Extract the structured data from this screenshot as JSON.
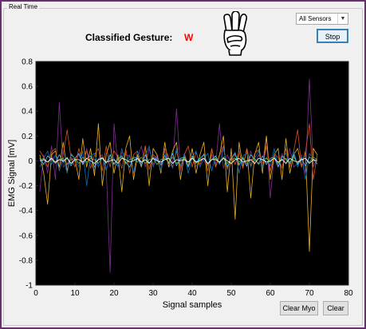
{
  "panel": {
    "title": "Real Time"
  },
  "gesture": {
    "label": "Classified Gesture:",
    "value": "W"
  },
  "sensor_select": {
    "selected": "All Sensors"
  },
  "buttons": {
    "stop": "Stop",
    "clear_myo": "Clear Myo",
    "clear": "Clear"
  },
  "icons": {
    "hand": "hand-gesture-w-icon",
    "dropdown": "chevron-down-icon"
  },
  "chart_data": {
    "type": "line",
    "xlabel": "Signal samples",
    "ylabel": "EMG Signal [mV]",
    "xlim": [
      0,
      80
    ],
    "ylim": [
      -1,
      0.8
    ],
    "xticks": [
      "0",
      "10",
      "20",
      "30",
      "40",
      "50",
      "60",
      "70",
      "80"
    ],
    "yticks": [
      "-1",
      "-0.8",
      "-0.6",
      "-0.4",
      "-0.2",
      "0",
      "0.2",
      "0.4",
      "0.6",
      "0.8"
    ],
    "background": "#000000",
    "grid": false,
    "x": [
      1,
      2,
      3,
      4,
      5,
      6,
      7,
      8,
      9,
      10,
      11,
      12,
      13,
      14,
      15,
      16,
      17,
      18,
      19,
      20,
      21,
      22,
      23,
      24,
      25,
      26,
      27,
      28,
      29,
      30,
      31,
      32,
      33,
      34,
      35,
      36,
      37,
      38,
      39,
      40,
      41,
      42,
      43,
      44,
      45,
      46,
      47,
      48,
      49,
      50,
      51,
      52,
      53,
      54,
      55,
      56,
      57,
      58,
      59,
      60,
      61,
      62,
      63,
      64,
      65,
      66,
      67,
      68,
      69,
      70,
      71,
      72
    ],
    "series": [
      {
        "color": "#7e2f8e",
        "values": [
          -0.25,
          0.05,
          -0.1,
          0.12,
          -0.15,
          0.47,
          -0.05,
          -0.02,
          0.03,
          -0.01,
          0.05,
          -0.03,
          0.1,
          -0.02,
          -0.08,
          0.02,
          0.05,
          -0.05,
          -0.9,
          0.3,
          -0.05,
          0.07,
          0.05,
          0.04,
          -0.1,
          0.02,
          0.12,
          -0.05,
          0.1,
          -0.03,
          0.05,
          -0.04,
          0.08,
          -0.05,
          -0.02,
          0.42,
          -0.08,
          0.06,
          -0.04,
          0.1,
          -0.05,
          0.02,
          0.0,
          -0.04,
          0.05,
          -0.03,
          0.3,
          -0.06,
          0.05,
          -0.03,
          0.05,
          -0.04,
          0.02,
          -0.05,
          0.08,
          -0.03,
          0.05,
          -0.02,
          0.2,
          -0.3,
          0.05,
          -0.04,
          0.06,
          -0.03,
          0.1,
          -0.05,
          -0.02,
          0.05,
          -0.1,
          0.66,
          -0.05,
          0.02
        ]
      },
      {
        "color": "#edb120",
        "values": [
          0.05,
          -0.1,
          -0.35,
          0.05,
          0.08,
          -0.05,
          0.15,
          -0.08,
          0.05,
          0.02,
          -0.15,
          0.18,
          -0.05,
          0.1,
          -0.12,
          0.3,
          -0.2,
          0.05,
          0.15,
          -0.1,
          0.05,
          -0.25,
          0.1,
          0.2,
          -0.15,
          0.05,
          -0.05,
          0.12,
          -0.2,
          0.1,
          0.05,
          -0.1,
          0.15,
          -0.05,
          0.08,
          0.15,
          -0.15,
          0.05,
          -0.05,
          0.1,
          -0.1,
          0.05,
          0.15,
          -0.2,
          0.1,
          -0.05,
          0.05,
          0.2,
          -0.25,
          0.1,
          -0.47,
          0.15,
          -0.05,
          0.1,
          -0.3,
          0.05,
          0.15,
          -0.1,
          0.2,
          -0.15,
          0.05,
          0.1,
          -0.15,
          0.18,
          -0.1,
          0.05,
          0.1,
          -0.05,
          0.08,
          -0.73,
          0.1,
          0.05
        ]
      },
      {
        "color": "#d95319",
        "values": [
          0.08,
          0.03,
          -0.05,
          0.07,
          0.1,
          -0.08,
          0.05,
          0.25,
          0.02,
          -0.05,
          0.1,
          -0.02,
          0.08,
          -0.06,
          0.05,
          0.1,
          -0.08,
          0.12,
          -0.05,
          0.08,
          0.03,
          -0.06,
          0.1,
          -0.1,
          0.05,
          0.08,
          -0.04,
          0.12,
          -0.07,
          0.05,
          0.02,
          -0.08,
          0.1,
          0.03,
          -0.05,
          0.08,
          -0.06,
          0.05,
          0.12,
          -0.05,
          0.07,
          -0.03,
          0.06,
          -0.08,
          0.1,
          -0.05,
          0.04,
          0.12,
          -0.07,
          0.05,
          -0.03,
          0.08,
          -0.06,
          0.1,
          -0.04,
          0.06,
          0.09,
          -0.05,
          0.12,
          -0.08,
          0.05,
          0.03,
          -0.06,
          0.1,
          -0.05,
          0.08,
          0.25,
          -0.05,
          0.07,
          0.3,
          -0.15,
          0.05
        ]
      },
      {
        "color": "#0072bd",
        "values": [
          -0.05,
          0.02,
          0.08,
          -0.03,
          0.05,
          -0.08,
          0.03,
          -0.1,
          0.06,
          0.02,
          -0.05,
          0.08,
          -0.2,
          0.04,
          0.06,
          -0.05,
          0.03,
          -0.08,
          0.05,
          0.02,
          -0.05,
          0.1,
          -0.03,
          0.05,
          -0.1,
          0.08,
          -0.02,
          0.04,
          0.12,
          -0.05,
          0.03,
          -0.08,
          0.05,
          0.02,
          -0.06,
          0.1,
          -0.04,
          0.05,
          -0.1,
          0.03,
          0.08,
          -0.05,
          0.02,
          0.06,
          -0.08,
          0.04,
          -0.03,
          0.1,
          -0.05,
          0.02,
          0.07,
          -0.1,
          0.04,
          0.06,
          -0.05,
          0.02,
          0.08,
          -0.06,
          0.03,
          -0.04,
          0.1,
          -0.05,
          0.02,
          0.06,
          -0.03,
          0.08,
          -0.05,
          0.03,
          -0.15,
          0.06,
          0.02,
          -0.03
        ]
      },
      {
        "color": "#4dbeee",
        "values": [
          0.02,
          -0.03,
          0.04,
          0.01,
          -0.02,
          0.05,
          -0.01,
          0.03,
          -0.04,
          0.02,
          0.06,
          -0.03,
          0.02,
          0.04,
          -0.05,
          0.01,
          0.03,
          -0.02,
          0.05,
          -0.03,
          0.02,
          0.04,
          -0.01,
          -0.05,
          0.03,
          0.02,
          -0.04,
          0.05,
          -0.02,
          0.03,
          0.01,
          -0.03,
          0.04,
          -0.02,
          0.06,
          -0.04,
          0.02,
          0.03,
          -0.05,
          0.04,
          -0.01,
          0.02,
          0.05,
          -0.03,
          0.01,
          0.04,
          -0.02,
          0.03,
          -0.05,
          0.02,
          0.06,
          -0.03,
          0.02,
          -0.04,
          0.05,
          0.01,
          -0.02,
          0.04,
          -0.03,
          0.02,
          0.03,
          -0.05,
          0.04,
          0.01,
          -0.02,
          0.05,
          -0.03,
          0.02,
          -0.04,
          0.03,
          0.01,
          -0.02
        ]
      },
      {
        "color": "#77ac30",
        "values": [
          0.01,
          0.02,
          -0.01,
          0.03,
          -0.02,
          0.01,
          0.02,
          -0.03,
          0.01,
          0.02,
          -0.02,
          0.03,
          -0.01,
          0.02,
          0.01,
          -0.02,
          0.03,
          -0.01,
          0.02,
          -0.02,
          0.01,
          0.03,
          -0.02,
          0.01,
          0.02,
          -0.01,
          0.03,
          -0.02,
          0.01,
          0.02,
          -0.03,
          0.01,
          0.02,
          -0.01,
          0.03,
          -0.02,
          0.01,
          0.02,
          -0.01,
          0.03,
          -0.02,
          0.01,
          0.02,
          -0.03,
          0.01,
          0.02,
          -0.01,
          0.03,
          -0.02,
          0.01,
          0.02,
          -0.01,
          0.03,
          -0.02,
          0.01,
          0.02,
          -0.03,
          0.01,
          0.02,
          -0.01,
          0.03,
          -0.02,
          0.01,
          0.02,
          -0.01,
          0.03,
          -0.02,
          0.01,
          0.02,
          -0.01,
          0.03,
          0.01
        ]
      },
      {
        "color": "#ffffff",
        "values": [
          0.0,
          0.01,
          -0.01,
          0.02,
          -0.01,
          0.01,
          0.0,
          0.02,
          -0.02,
          0.01,
          0.01,
          -0.01,
          0.02,
          0.0,
          -0.02,
          0.01,
          0.02,
          -0.01,
          0.0,
          0.01,
          -0.02,
          0.02,
          0.01,
          -0.01,
          0.0,
          0.02,
          -0.01,
          0.01,
          -0.02,
          0.02,
          0.0,
          -0.01,
          0.01,
          0.02,
          -0.02,
          0.01,
          0.0,
          0.01,
          -0.01,
          0.02,
          -0.01,
          0.0,
          0.02,
          -0.02,
          0.01,
          0.01,
          -0.01,
          0.02,
          0.0,
          -0.02,
          0.01,
          0.02,
          -0.01,
          0.0,
          0.01,
          -0.02,
          0.02,
          0.01,
          -0.01,
          0.0,
          0.02,
          -0.01,
          0.01,
          -0.02,
          0.02,
          0.0,
          -0.01,
          0.01,
          0.02,
          -0.02,
          0.01,
          0.0
        ]
      }
    ]
  }
}
